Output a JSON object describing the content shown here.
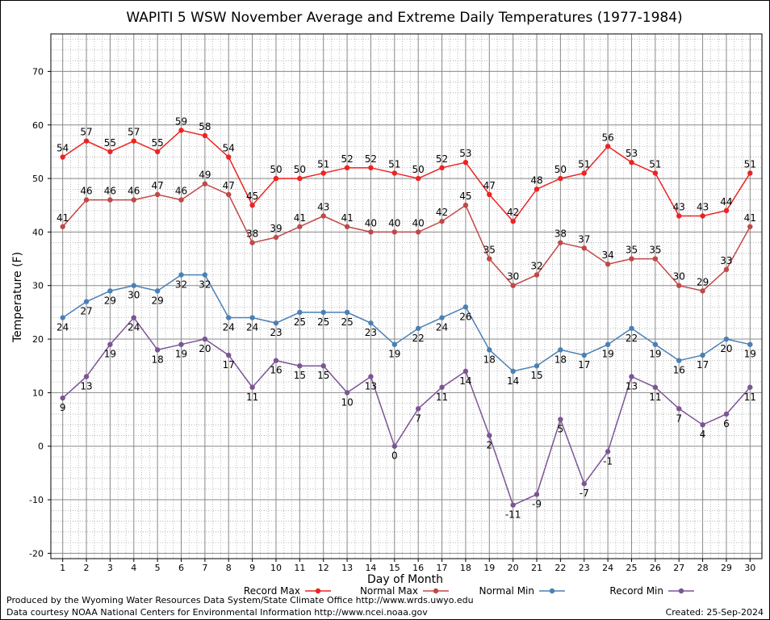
{
  "chart_data": {
    "type": "line",
    "title": "WAPITI 5 WSW November Average and Extreme Daily Temperatures (1977-1984)",
    "xlabel": "Day of Month",
    "ylabel": "Temperature (F)",
    "ylim": [
      -21,
      77
    ],
    "yticks": [
      -20,
      -10,
      0,
      10,
      20,
      30,
      40,
      50,
      60,
      70
    ],
    "xlim": [
      0.5,
      30.5
    ],
    "x": [
      1,
      2,
      3,
      4,
      5,
      6,
      7,
      8,
      9,
      10,
      11,
      12,
      13,
      14,
      15,
      16,
      17,
      18,
      19,
      20,
      21,
      22,
      23,
      24,
      25,
      26,
      27,
      28,
      29,
      30
    ],
    "grid": true,
    "legend_position": "bottom",
    "series": [
      {
        "name": "Record Max",
        "color": "#ee2222",
        "label_position": "above",
        "values": [
          54,
          57,
          55,
          57,
          55,
          59,
          58,
          54,
          45,
          50,
          50,
          51,
          52,
          52,
          51,
          50,
          52,
          53,
          47,
          42,
          48,
          50,
          51,
          56,
          53,
          51,
          43,
          43,
          44,
          51
        ]
      },
      {
        "name": "Normal Max",
        "color": "#c04848",
        "label_position": "above",
        "values": [
          41,
          46,
          46,
          46,
          47,
          46,
          49,
          47,
          38,
          39,
          41,
          43,
          41,
          40,
          40,
          40,
          42,
          45,
          35,
          30,
          32,
          38,
          37,
          34,
          35,
          35,
          30,
          29,
          33,
          41
        ]
      },
      {
        "name": "Normal Min",
        "color": "#4a80b4",
        "label_position": "below",
        "values": [
          24,
          27,
          29,
          30,
          29,
          32,
          32,
          24,
          24,
          23,
          25,
          25,
          25,
          23,
          19,
          22,
          24,
          26,
          18,
          14,
          15,
          18,
          17,
          19,
          22,
          19,
          16,
          17,
          20,
          19
        ]
      },
      {
        "name": "Record Min",
        "color": "#7c5496",
        "label_position": "below",
        "values": [
          9,
          13,
          19,
          24,
          18,
          19,
          20,
          17,
          11,
          16,
          15,
          15,
          10,
          13,
          0,
          7,
          11,
          14,
          2,
          -11,
          -9,
          5,
          -7,
          -1,
          13,
          11,
          7,
          4,
          6,
          11
        ]
      }
    ]
  },
  "footer": {
    "produced_by": "Produced by the Wyoming Water Resources Data System/State Climate Office http://www.wrds.uwyo.edu",
    "data_courtesy": "Data courtesy NOAA National Centers for Environmental Information http://www.ncei.noaa.gov",
    "created": "Created:  25-Sep-2024"
  }
}
